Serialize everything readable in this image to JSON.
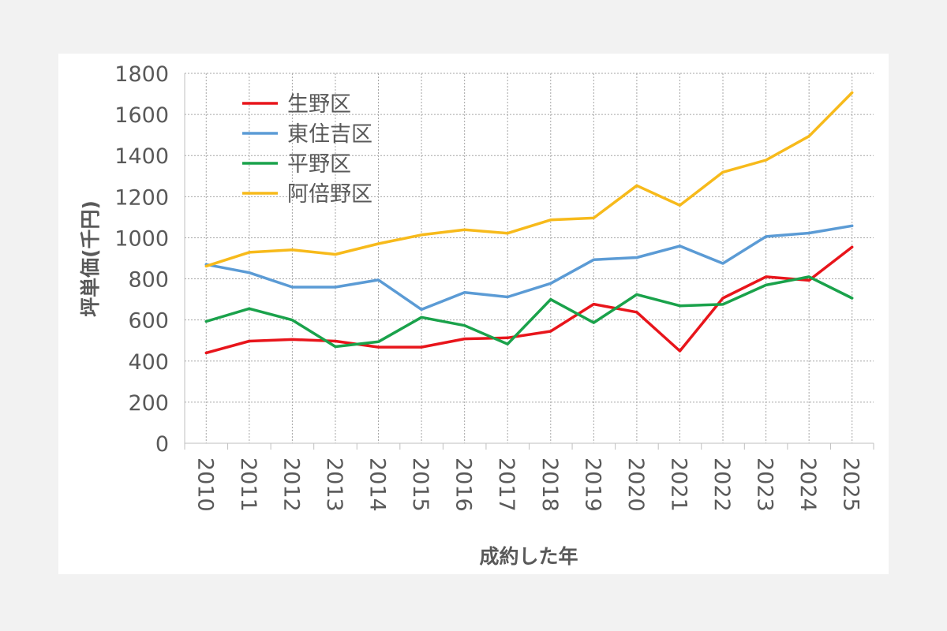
{
  "chart_data": {
    "type": "line",
    "xlabel": "成約した年",
    "ylabel": "坪単価(千円)",
    "ylim": [
      0,
      1800
    ],
    "yticks": [
      0,
      200,
      400,
      600,
      800,
      1000,
      1200,
      1400,
      1600,
      1800
    ],
    "grid": true,
    "legend_position": "top-left",
    "categories": [
      "2010",
      "2011",
      "2012",
      "2013",
      "2014",
      "2015",
      "2016",
      "2017",
      "2018",
      "2019",
      "2020",
      "2021",
      "2022",
      "2023",
      "2024",
      "2025"
    ],
    "series": [
      {
        "name": "生野区",
        "color": "#e8151b",
        "values": [
          440,
          497,
          505,
          497,
          468,
          468,
          508,
          513,
          545,
          677,
          638,
          449,
          706,
          810,
          793,
          955
        ]
      },
      {
        "name": "東住吉区",
        "color": "#5b9bd5",
        "values": [
          870,
          830,
          760,
          760,
          795,
          651,
          734,
          712,
          778,
          893,
          904,
          960,
          875,
          1006,
          1023,
          1058
        ]
      },
      {
        "name": "平野区",
        "color": "#1aa24b",
        "values": [
          593,
          655,
          600,
          470,
          494,
          613,
          573,
          483,
          700,
          587,
          724,
          669,
          676,
          770,
          810,
          706
        ]
      },
      {
        "name": "阿倍野区",
        "color": "#f7ba1b",
        "values": [
          862,
          929,
          941,
          919,
          971,
          1014,
          1039,
          1022,
          1087,
          1096,
          1254,
          1158,
          1319,
          1378,
          1494,
          1706
        ]
      }
    ]
  }
}
